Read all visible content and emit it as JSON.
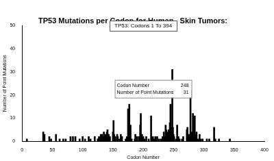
{
  "chart_data": {
    "type": "bar",
    "title": "TP53 Mutations per Codon for Human , Skin Tumors:",
    "subtitle": "TP53: Codons 1 To 394",
    "x_label": "Codon Number",
    "y_label": "Number of Point Mutations",
    "x": [
      8,
      35,
      37,
      45,
      48,
      56,
      62,
      68,
      72,
      80,
      84,
      88,
      95,
      100,
      104,
      110,
      113,
      120,
      125,
      126,
      127,
      128,
      130,
      132,
      134,
      135,
      136,
      138,
      140,
      141,
      143,
      145,
      150,
      151,
      152,
      154,
      157,
      158,
      161,
      163,
      165,
      171,
      173,
      175,
      176,
      177,
      179,
      181,
      186,
      187,
      190,
      193,
      195,
      196,
      198,
      200,
      202,
      205,
      209,
      213,
      214,
      215,
      216,
      218,
      220,
      223,
      226,
      229,
      232,
      234,
      236,
      237,
      238,
      241,
      242,
      244,
      245,
      246,
      247,
      248,
      249,
      250,
      251,
      254,
      256,
      258,
      260,
      264,
      266,
      272,
      273,
      275,
      276,
      277,
      278,
      280,
      282,
      283,
      285,
      286,
      287,
      288,
      290,
      293,
      295,
      298,
      305,
      309,
      317,
      319,
      325,
      343
    ],
    "values": [
      1,
      4,
      3,
      2,
      1,
      3,
      1,
      1,
      1,
      2,
      2,
      2,
      1,
      2,
      1,
      2,
      1,
      2,
      1,
      1,
      2,
      1,
      3,
      3,
      2,
      4,
      2,
      3,
      4,
      5,
      3,
      2,
      4,
      9,
      3,
      2,
      3,
      2,
      1,
      3,
      2,
      1,
      2,
      14,
      5,
      16,
      7,
      1,
      1,
      3,
      2,
      2,
      7,
      12,
      3,
      2,
      1,
      2,
      1,
      11,
      2,
      1,
      2,
      1,
      2,
      2,
      1,
      1,
      2,
      4,
      2,
      7,
      5,
      4,
      5,
      8,
      16,
      4,
      6,
      31,
      6,
      3,
      2,
      1,
      7,
      2,
      1,
      1,
      2,
      5,
      6,
      3,
      1,
      3,
      22,
      4,
      12,
      3,
      11,
      3,
      2,
      4,
      1,
      3,
      1,
      1,
      1,
      1,
      6,
      1,
      1,
      1
    ],
    "color": "#000000",
    "xlim": [
      0,
      400
    ],
    "xticks": [
      0,
      50,
      100,
      150,
      200,
      250,
      300,
      350,
      400
    ],
    "ylim": [
      0,
      50
    ],
    "yticks": [
      0,
      10,
      20,
      30,
      40,
      50
    ],
    "grid": false,
    "annotation": {
      "x": 248,
      "y": 31,
      "rows": [
        {
          "label": "Codon Number",
          "value": 248
        },
        {
          "label": "Number of Point Mutations",
          "value": 31
        }
      ]
    }
  }
}
